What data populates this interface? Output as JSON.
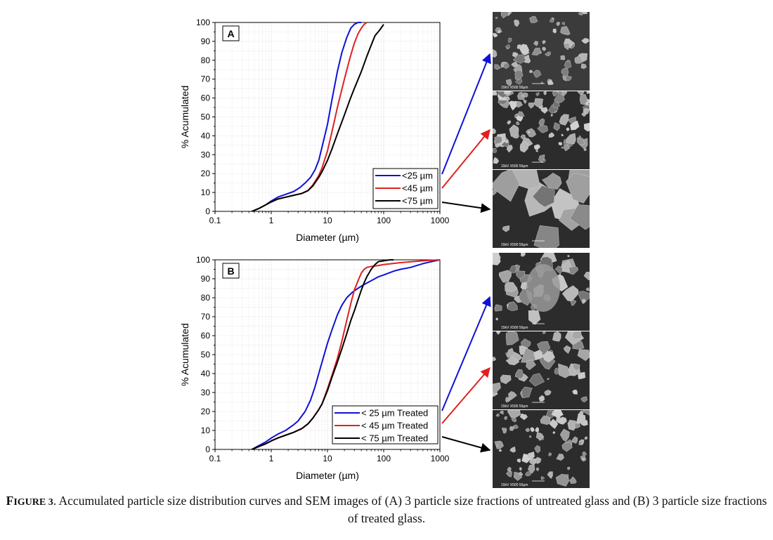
{
  "chart_data": [
    {
      "type": "line",
      "panel_label": "A",
      "xlabel": "Diameter (µm)",
      "ylabel": "% Acumulated",
      "xscale": "log",
      "xlim": [
        0.1,
        1000
      ],
      "ylim": [
        0,
        100
      ],
      "xticks": [
        "0.1",
        "1",
        "10",
        "100",
        "1000"
      ],
      "yticks": [
        "0",
        "10",
        "20",
        "30",
        "40",
        "50",
        "60",
        "70",
        "80",
        "90",
        "100"
      ],
      "grid": true,
      "legend_position": "bottom-right",
      "series": [
        {
          "name": "<25 µm",
          "color": "#1010d8",
          "x": [
            0.45,
            0.6,
            0.8,
            1.0,
            1.3,
            1.8,
            2.5,
            3.2,
            4.0,
            5.0,
            6.0,
            7.0,
            8.0,
            10.0,
            12.0,
            15.0,
            18.0,
            22.0,
            26.0,
            30.0,
            35.0,
            40.0
          ],
          "y": [
            0,
            1.5,
            3.5,
            5.5,
            7.5,
            9,
            10.5,
            12.5,
            15,
            18,
            22,
            27,
            34,
            46,
            59,
            74,
            84,
            92,
            97,
            99,
            100,
            100
          ]
        },
        {
          "name": "<45 µm",
          "color": "#e02020",
          "x": [
            0.45,
            0.6,
            0.8,
            1.0,
            1.3,
            1.8,
            2.5,
            3.5,
            4.5,
            5.5,
            7.0,
            8.0,
            10.0,
            12.0,
            15.0,
            20.0,
            25.0,
            30.0,
            35.0,
            40.0,
            45.0,
            50.0
          ],
          "y": [
            0,
            1.5,
            3.5,
            5,
            6.5,
            7.5,
            8.5,
            9.5,
            11,
            14,
            19,
            23,
            32,
            42,
            55,
            70,
            81,
            89,
            94,
            97,
            99,
            100
          ]
        },
        {
          "name": "<75 µm",
          "color": "#000000",
          "x": [
            0.45,
            0.6,
            0.8,
            1.0,
            1.3,
            1.8,
            2.5,
            3.5,
            4.5,
            5.5,
            7.0,
            8.0,
            10.0,
            12.0,
            15.0,
            20.0,
            25.0,
            30.0,
            40.0,
            50.0,
            60.0,
            70.0,
            85.0,
            100.0
          ],
          "y": [
            0,
            1.5,
            3.5,
            5,
            6.5,
            7.5,
            8.5,
            9.5,
            11,
            13.5,
            18,
            21,
            27,
            33,
            41,
            51,
            59,
            65,
            74,
            82,
            88,
            93,
            96,
            99
          ]
        }
      ]
    },
    {
      "type": "line",
      "panel_label": "B",
      "xlabel": "Diameter (µm)",
      "ylabel": "% Acumulated",
      "xscale": "log",
      "xlim": [
        0.1,
        1000
      ],
      "ylim": [
        0,
        100
      ],
      "xticks": [
        "0.1",
        "1",
        "10",
        "100",
        "1000"
      ],
      "yticks": [
        "0",
        "10",
        "20",
        "30",
        "40",
        "50",
        "60",
        "70",
        "80",
        "90",
        "100"
      ],
      "grid": true,
      "legend_position": "bottom-right",
      "series": [
        {
          "name": "< 25 µm Treated",
          "color": "#1010d8",
          "x": [
            0.45,
            0.6,
            0.8,
            1.0,
            1.3,
            1.8,
            2.5,
            3.0,
            4.0,
            5.0,
            6.0,
            7.0,
            8.0,
            10.0,
            12.0,
            15.0,
            18.0,
            22.0,
            28.0,
            35.0,
            45.0,
            60.0,
            80.0,
            100.0,
            150.0,
            200.0,
            300.0,
            500.0,
            700.0,
            1000.0
          ],
          "y": [
            0,
            2,
            4,
            6,
            8,
            10,
            13,
            15,
            20,
            26,
            33,
            40,
            46,
            56,
            63,
            71,
            76,
            80,
            83,
            85,
            87,
            89,
            91,
            92,
            94,
            95,
            96,
            98,
            99,
            100
          ]
        },
        {
          "name": "< 45 µm Treated",
          "color": "#e02020",
          "x": [
            0.45,
            0.6,
            0.8,
            1.0,
            1.3,
            1.8,
            2.5,
            3.5,
            4.5,
            5.5,
            7.0,
            8.0,
            10.0,
            12.0,
            15.0,
            18.0,
            22.0,
            26.0,
            30.0,
            35.0,
            40.0,
            45.0,
            50.0,
            60.0,
            80.0,
            100.0,
            200.0,
            500.0,
            1000.0
          ],
          "y": [
            0,
            1.5,
            3,
            4.5,
            6,
            7.5,
            9,
            11,
            13.5,
            16.5,
            21,
            24,
            32,
            39,
            48,
            57,
            68,
            77,
            84,
            89,
            93,
            95,
            96,
            96.5,
            97,
            97.5,
            98.5,
            99.5,
            100
          ]
        },
        {
          "name": "< 75 µm Treated",
          "color": "#000000",
          "x": [
            0.45,
            0.6,
            0.8,
            1.0,
            1.3,
            1.8,
            2.5,
            3.5,
            4.5,
            5.5,
            7.0,
            8.0,
            10.0,
            12.0,
            15.0,
            18.0,
            22.0,
            26.0,
            30.0,
            35.0,
            40.0,
            45.0,
            50.0,
            60.0,
            70.0,
            80.0,
            100.0,
            130.0,
            150.0
          ],
          "y": [
            0,
            1.5,
            3,
            4.5,
            6,
            7.5,
            9,
            11,
            13.5,
            16.5,
            21,
            24,
            31,
            38,
            46,
            53,
            61,
            68,
            73,
            79,
            84,
            88,
            91,
            95,
            97.5,
            99,
            99.5,
            100,
            100
          ]
        }
      ]
    }
  ],
  "caption": {
    "label": "FIGURE 3",
    "text": ". Accumulated particle size distribution curves and SEM images of (A) 3 particle size fractions of untreated glass and (B) 3 particle size fractions of treated glass."
  },
  "sem_images": [
    {
      "scale_label": "15kV    X500    50µm"
    },
    {
      "scale_label": "15kV    X500    50µm"
    },
    {
      "scale_label": "15kV    X500    50µm"
    },
    {
      "scale_label": "15kV    X500    50µm"
    },
    {
      "scale_label": "15kV    X500    50µm"
    },
    {
      "scale_label": "15kV    X500    50µm"
    }
  ],
  "arrow_colors": [
    "#1010d8",
    "#e02020",
    "#000000"
  ]
}
